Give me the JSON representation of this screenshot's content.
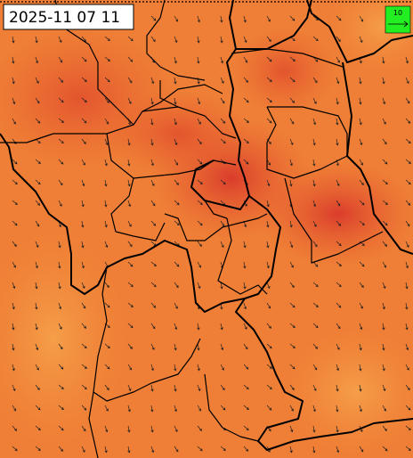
{
  "header": {
    "timestamp": "2025-11 07 11"
  },
  "legend": {
    "label": "10"
  }
}
